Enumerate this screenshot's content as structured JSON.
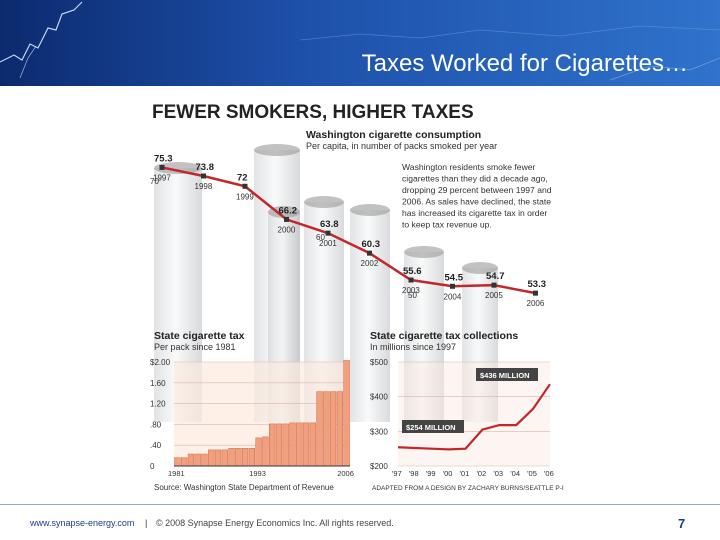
{
  "slide": {
    "title": "Taxes Worked for Cigarettes…",
    "footer_url": "www.synapse-energy.com",
    "footer_separator": "|",
    "footer_copyright": "© 2008 Synapse Energy Economics Inc. All rights reserved.",
    "page_number": "7"
  },
  "colors": {
    "header_dark": "#0b2a6e",
    "header_light": "#2f73cc",
    "line": "#c2282a",
    "bar": "#f0a07e",
    "bar_edge": "#d4653c",
    "ink": "#222222"
  },
  "graphic": {
    "headline": "FEWER SMOKERS, HIGHER TAXES",
    "source": "Source: Washington State Department of Revenue",
    "credit": "ADAPTED FROM A DESIGN BY ZACHARY BURNS/SEATTLE P-I",
    "description": [
      "Washington residents smoke fewer",
      "cigarettes than they did a decade ago,",
      "dropping 29 percent between 1997 and",
      "2006. As sales have declined, the state",
      "has increased its cigarette tax in order",
      "to keep tax revenue up."
    ]
  },
  "chart_data": [
    {
      "type": "line",
      "title": "Washington cigarette consumption",
      "subtitle": "Per capita, in number of packs smoked per year",
      "x": [
        "1997",
        "1998",
        "1999",
        "2000",
        "2001",
        "2002",
        "2003",
        "2004",
        "2005",
        "2006"
      ],
      "values": [
        75.3,
        73.8,
        72,
        66.2,
        63.8,
        60.3,
        55.6,
        54.5,
        54.7,
        53.3
      ],
      "value_labels": [
        "75.3",
        "73.8",
        "72",
        "66.2",
        "63.8",
        "60.3",
        "55.6",
        "54.5",
        "54.7",
        "53.3"
      ],
      "y_ticks": [
        "70",
        "60",
        "50"
      ],
      "ylim": [
        50,
        78
      ]
    },
    {
      "type": "bar",
      "title": "State cigarette tax",
      "subtitle": "Per pack since 1981",
      "x_ticks": [
        "1981",
        "1993",
        "2006"
      ],
      "y_ticks": [
        "$2.00",
        "1.60",
        "1.20",
        ".80",
        ".40",
        "0"
      ],
      "categories": [
        "1981",
        "1982",
        "1983",
        "1984",
        "1985",
        "1986",
        "1987",
        "1988",
        "1989",
        "1990",
        "1991",
        "1992",
        "1993",
        "1994",
        "1995",
        "1996",
        "1997",
        "1998",
        "1999",
        "2000",
        "2001",
        "2002",
        "2003",
        "2004",
        "2005",
        "2006"
      ],
      "values": [
        0.16,
        0.16,
        0.23,
        0.23,
        0.23,
        0.31,
        0.31,
        0.31,
        0.34,
        0.34,
        0.34,
        0.34,
        0.54,
        0.56,
        0.81,
        0.81,
        0.81,
        0.83,
        0.83,
        0.83,
        0.83,
        1.43,
        1.43,
        1.43,
        1.43,
        2.03
      ],
      "ylim": [
        0,
        2.0
      ]
    },
    {
      "type": "line",
      "title": "State cigarette tax collections",
      "subtitle": "In millions since 1997",
      "x": [
        "'97",
        "'98",
        "'99",
        "'00",
        "'01",
        "'02",
        "'03",
        "'04",
        "'05",
        "'06"
      ],
      "values": [
        254,
        252,
        250,
        248,
        250,
        305,
        318,
        318,
        365,
        436
      ],
      "y_ticks": [
        "$500",
        "$400",
        "$300",
        "$200"
      ],
      "ylim": [
        200,
        500
      ],
      "callouts": [
        "$436 MILLION",
        "$254 MILLION"
      ]
    }
  ]
}
